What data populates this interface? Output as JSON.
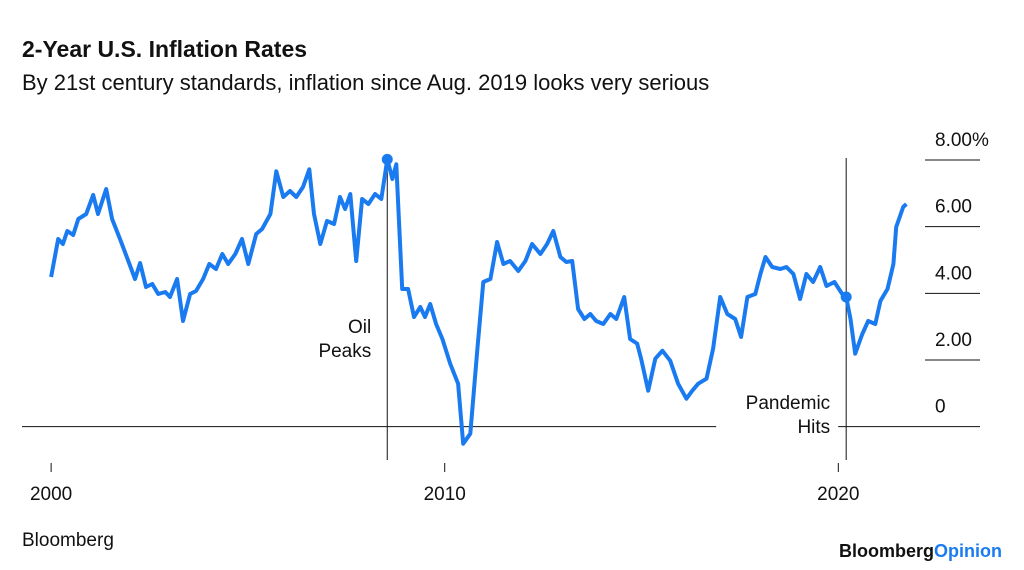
{
  "chart_data": {
    "type": "line",
    "title": "2-Year U.S. Inflation Rates",
    "subtitle": "By 21st century standards, inflation since Aug. 2019 looks very serious",
    "source": "Bloomberg",
    "logo": [
      "Bloomberg",
      "Opinion"
    ],
    "xlim": [
      1999.26,
      2023.6
    ],
    "xticks": [
      2000,
      2010,
      2020
    ],
    "ylim": [
      -1,
      8.3
    ],
    "yticks": [
      {
        "value": 8,
        "label": "8.00%"
      },
      {
        "value": 6,
        "label": "6.00"
      },
      {
        "value": 4,
        "label": "4.00"
      },
      {
        "value": 2,
        "label": "2.00"
      },
      0
    ],
    "annotations": [
      {
        "lines": [
          "Oil",
          "Peaks"
        ],
        "x": 2008.54
      },
      {
        "lines": [
          "Pandemic",
          "Hits"
        ],
        "x": 2020.2
      }
    ],
    "series": [
      {
        "color": "#1a7bf0",
        "x": [
          2000.0,
          2000.18,
          2000.3,
          2000.41,
          2000.56,
          2000.69,
          2000.89,
          2001.07,
          2001.19,
          2001.4,
          2001.55,
          2001.75,
          2001.96,
          2002.13,
          2002.26,
          2002.41,
          2002.57,
          2002.72,
          2002.9,
          2003.02,
          2003.2,
          2003.35,
          2003.53,
          2003.68,
          2003.86,
          2004.02,
          2004.19,
          2004.35,
          2004.5,
          2004.68,
          2004.85,
          2005.01,
          2005.21,
          2005.36,
          2005.57,
          2005.72,
          2005.9,
          2006.07,
          2006.23,
          2006.4,
          2006.56,
          2006.68,
          2006.84,
          2007.01,
          2007.19,
          2007.34,
          2007.47,
          2007.6,
          2007.75,
          2007.9,
          2008.06,
          2008.23,
          2008.39,
          2008.54,
          2008.67,
          2008.77,
          2008.92,
          2009.07,
          2009.22,
          2009.38,
          2009.5,
          2009.63,
          2009.78,
          2009.94,
          2010.14,
          2010.34,
          2010.47,
          2010.65,
          2010.83,
          2010.98,
          2011.16,
          2011.33,
          2011.49,
          2011.66,
          2011.87,
          2012.05,
          2012.22,
          2012.43,
          2012.6,
          2012.76,
          2012.94,
          2013.09,
          2013.24,
          2013.39,
          2013.55,
          2013.7,
          2013.85,
          2014.03,
          2014.21,
          2014.36,
          2014.56,
          2014.71,
          2014.89,
          2014.99,
          2015.17,
          2015.35,
          2015.53,
          2015.73,
          2015.93,
          2016.14,
          2016.29,
          2016.44,
          2016.65,
          2016.82,
          2017.0,
          2017.18,
          2017.38,
          2017.53,
          2017.69,
          2017.89,
          2018.02,
          2018.15,
          2018.32,
          2018.53,
          2018.68,
          2018.86,
          2019.03,
          2019.19,
          2019.36,
          2019.54,
          2019.7,
          2019.9,
          2020.1,
          2020.2,
          2020.31,
          2020.43,
          2020.61,
          2020.76,
          2020.94,
          2021.07,
          2021.25,
          2021.4,
          2021.47,
          2021.65,
          2021.73
        ],
        "values": [
          4.49,
          5.63,
          5.48,
          5.87,
          5.75,
          6.23,
          6.38,
          6.95,
          6.38,
          7.13,
          6.23,
          5.63,
          4.97,
          4.43,
          4.91,
          4.19,
          4.28,
          3.98,
          4.04,
          3.89,
          4.43,
          3.17,
          3.98,
          4.07,
          4.43,
          4.88,
          4.73,
          5.18,
          4.88,
          5.18,
          5.63,
          4.88,
          5.78,
          5.93,
          6.38,
          7.66,
          6.89,
          7.07,
          6.89,
          7.19,
          7.72,
          6.38,
          5.48,
          6.17,
          6.08,
          6.89,
          6.53,
          6.98,
          4.97,
          6.83,
          6.68,
          6.98,
          6.83,
          8.02,
          7.43,
          7.87,
          4.13,
          4.13,
          3.29,
          3.59,
          3.29,
          3.68,
          3.08,
          2.63,
          1.89,
          1.29,
          -0.51,
          -0.21,
          2.34,
          4.34,
          4.43,
          5.54,
          4.88,
          4.97,
          4.67,
          4.97,
          5.48,
          5.18,
          5.48,
          5.87,
          5.09,
          4.94,
          4.97,
          3.53,
          3.23,
          3.38,
          3.17,
          3.08,
          3.38,
          3.23,
          3.89,
          2.63,
          2.49,
          2.04,
          1.08,
          2.04,
          2.28,
          1.98,
          1.29,
          0.84,
          1.08,
          1.29,
          1.44,
          2.34,
          3.89,
          3.38,
          3.23,
          2.69,
          3.89,
          3.98,
          4.58,
          5.09,
          4.79,
          4.73,
          4.79,
          4.58,
          3.83,
          4.58,
          4.34,
          4.79,
          4.22,
          4.34,
          3.98,
          3.89,
          3.23,
          2.19,
          2.78,
          3.17,
          3.08,
          3.77,
          4.13,
          4.88,
          5.99,
          6.59,
          6.68
        ]
      }
    ]
  }
}
